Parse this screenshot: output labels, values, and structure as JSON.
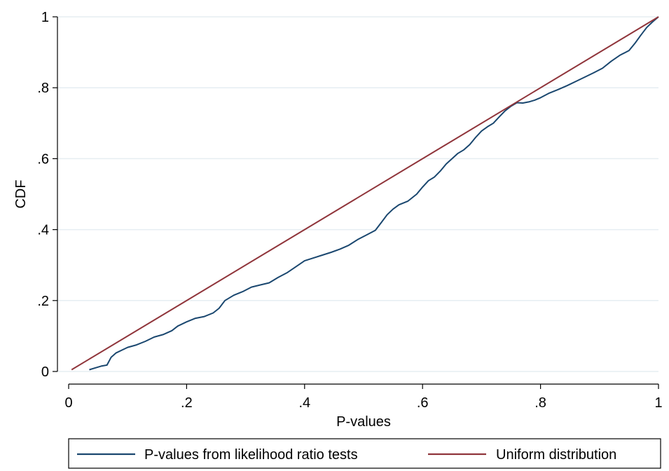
{
  "chart_data": {
    "type": "line",
    "xlabel": "P-values",
    "ylabel": "CDF",
    "xlim": [
      0,
      1
    ],
    "ylim": [
      0,
      1
    ],
    "x_ticks": [
      {
        "value": 0,
        "label": "0"
      },
      {
        "value": 0.2,
        "label": ".2"
      },
      {
        "value": 0.4,
        "label": ".4"
      },
      {
        "value": 0.6,
        "label": ".6"
      },
      {
        "value": 0.8,
        "label": ".8"
      },
      {
        "value": 1,
        "label": "1"
      }
    ],
    "y_ticks": [
      {
        "value": 0,
        "label": "0"
      },
      {
        "value": 0.2,
        "label": ".2"
      },
      {
        "value": 0.4,
        "label": ".4"
      },
      {
        "value": 0.6,
        "label": ".6"
      },
      {
        "value": 0.8,
        "label": ".8"
      },
      {
        "value": 1,
        "label": "1"
      }
    ],
    "grid": "horizontal",
    "legend_position": "bottom",
    "series": [
      {
        "name": "P-values from likelihood ratio tests",
        "color": "#1a476f",
        "points": [
          [
            0.035,
            0.005
          ],
          [
            0.045,
            0.01
          ],
          [
            0.055,
            0.015
          ],
          [
            0.065,
            0.018
          ],
          [
            0.072,
            0.04
          ],
          [
            0.08,
            0.052
          ],
          [
            0.09,
            0.06
          ],
          [
            0.1,
            0.068
          ],
          [
            0.115,
            0.075
          ],
          [
            0.13,
            0.085
          ],
          [
            0.145,
            0.097
          ],
          [
            0.16,
            0.104
          ],
          [
            0.175,
            0.115
          ],
          [
            0.185,
            0.128
          ],
          [
            0.2,
            0.14
          ],
          [
            0.215,
            0.15
          ],
          [
            0.23,
            0.155
          ],
          [
            0.245,
            0.165
          ],
          [
            0.255,
            0.178
          ],
          [
            0.265,
            0.2
          ],
          [
            0.28,
            0.215
          ],
          [
            0.295,
            0.225
          ],
          [
            0.31,
            0.238
          ],
          [
            0.325,
            0.244
          ],
          [
            0.34,
            0.25
          ],
          [
            0.355,
            0.265
          ],
          [
            0.37,
            0.278
          ],
          [
            0.385,
            0.295
          ],
          [
            0.4,
            0.312
          ],
          [
            0.415,
            0.32
          ],
          [
            0.43,
            0.328
          ],
          [
            0.445,
            0.336
          ],
          [
            0.46,
            0.345
          ],
          [
            0.475,
            0.356
          ],
          [
            0.49,
            0.372
          ],
          [
            0.505,
            0.385
          ],
          [
            0.52,
            0.398
          ],
          [
            0.53,
            0.42
          ],
          [
            0.54,
            0.442
          ],
          [
            0.55,
            0.458
          ],
          [
            0.56,
            0.47
          ],
          [
            0.575,
            0.48
          ],
          [
            0.59,
            0.5
          ],
          [
            0.6,
            0.52
          ],
          [
            0.61,
            0.538
          ],
          [
            0.62,
            0.548
          ],
          [
            0.63,
            0.565
          ],
          [
            0.64,
            0.585
          ],
          [
            0.65,
            0.6
          ],
          [
            0.66,
            0.615
          ],
          [
            0.67,
            0.625
          ],
          [
            0.68,
            0.64
          ],
          [
            0.69,
            0.66
          ],
          [
            0.7,
            0.678
          ],
          [
            0.71,
            0.69
          ],
          [
            0.72,
            0.7
          ],
          [
            0.73,
            0.718
          ],
          [
            0.74,
            0.735
          ],
          [
            0.75,
            0.748
          ],
          [
            0.76,
            0.758
          ],
          [
            0.77,
            0.757
          ],
          [
            0.78,
            0.76
          ],
          [
            0.79,
            0.765
          ],
          [
            0.8,
            0.772
          ],
          [
            0.815,
            0.785
          ],
          [
            0.83,
            0.795
          ],
          [
            0.845,
            0.806
          ],
          [
            0.86,
            0.818
          ],
          [
            0.875,
            0.83
          ],
          [
            0.89,
            0.842
          ],
          [
            0.905,
            0.855
          ],
          [
            0.92,
            0.875
          ],
          [
            0.935,
            0.892
          ],
          [
            0.95,
            0.905
          ],
          [
            0.96,
            0.925
          ],
          [
            0.97,
            0.948
          ],
          [
            0.98,
            0.97
          ],
          [
            0.99,
            0.986
          ],
          [
            1.0,
            1.0
          ]
        ]
      },
      {
        "name": "Uniform distribution",
        "color": "#90353b",
        "points": [
          [
            0.005,
            0.005
          ],
          [
            1.0,
            1.0
          ]
        ]
      }
    ]
  }
}
